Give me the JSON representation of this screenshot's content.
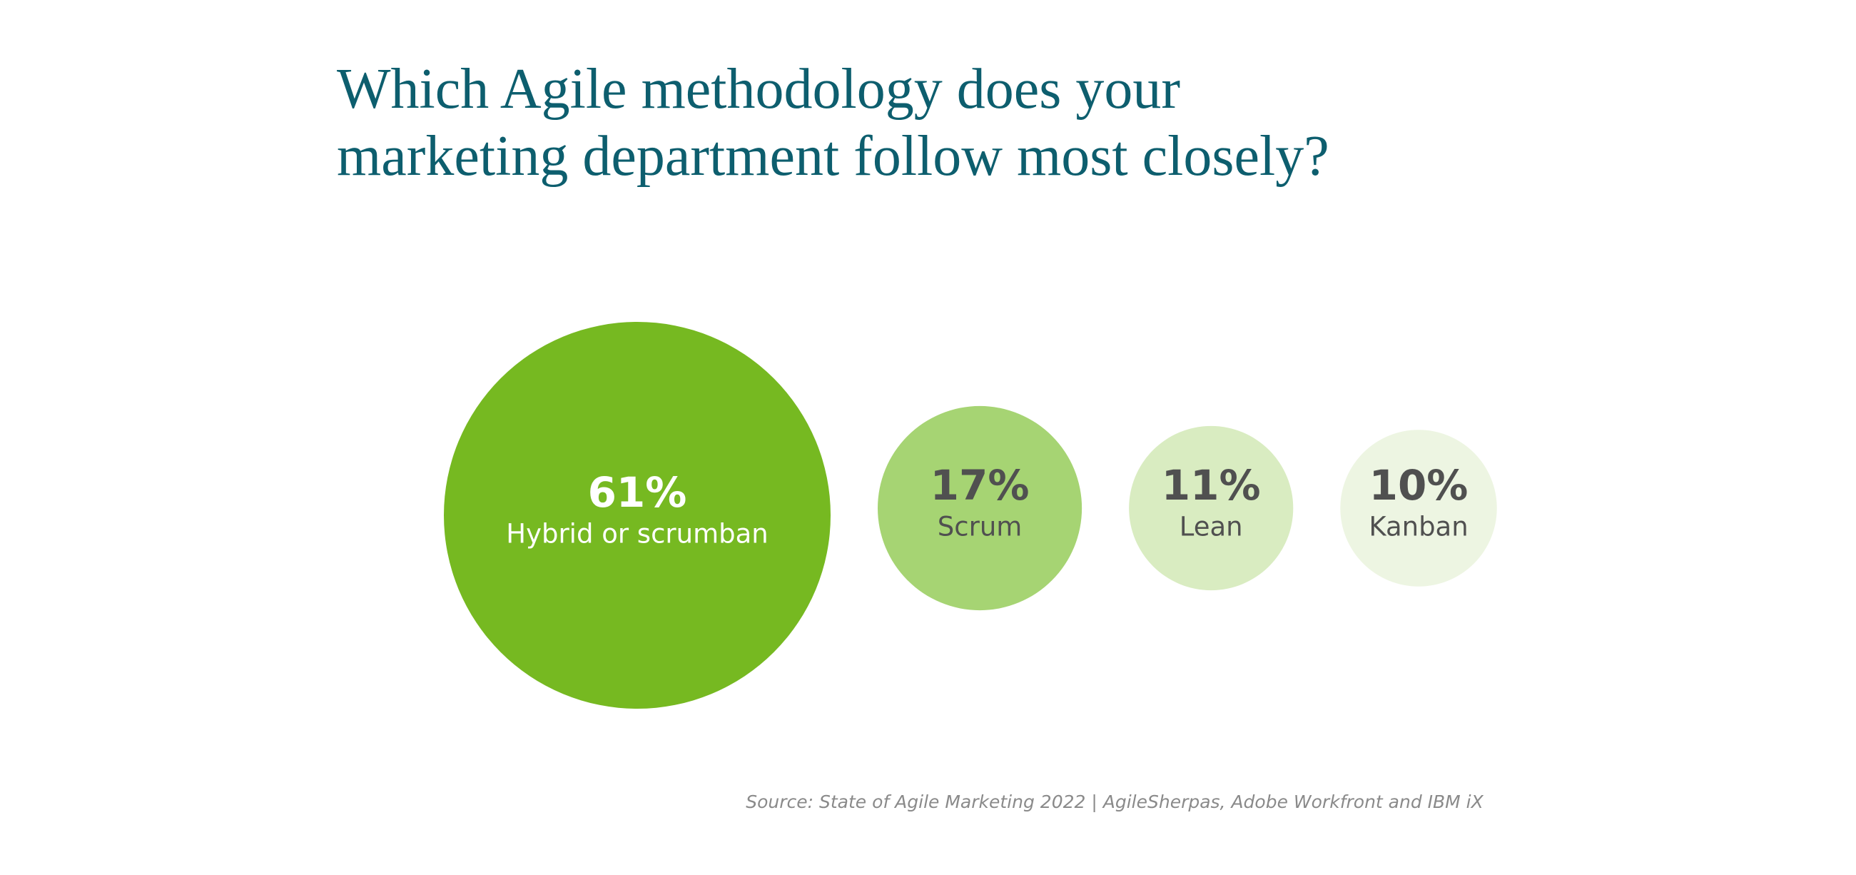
{
  "chart_data": {
    "type": "bubble",
    "title": "Which Agile methodology does your marketing department follow most closely?",
    "categories": [
      "Hybrid or scrumban",
      "Scrum",
      "Lean",
      "Kanban"
    ],
    "values": [
      61,
      17,
      11,
      10
    ],
    "value_labels": [
      "61%",
      "17%",
      "11%",
      "10%"
    ],
    "colors": [
      "#76b921",
      "#a6d473",
      "#d9ecc1",
      "#edf5e2"
    ],
    "text_colors": [
      "#ffffff",
      "#505050",
      "#505050",
      "#505050"
    ],
    "source": "Source: State of Agile Marketing 2022 | AgileSherpas, Adobe Workfront and IBM iX"
  }
}
